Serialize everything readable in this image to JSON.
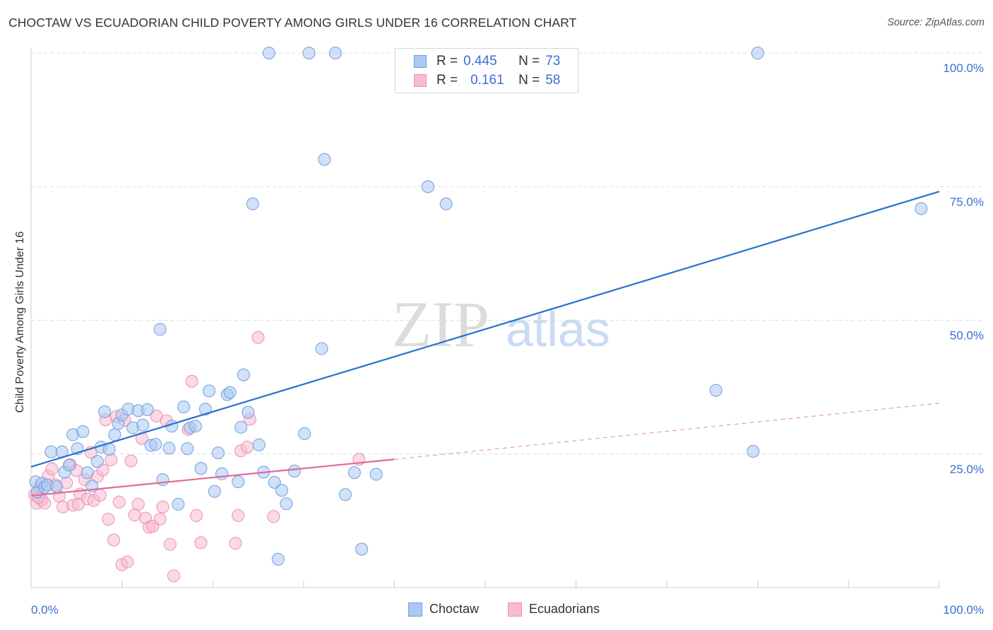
{
  "header": {
    "title": "CHOCTAW VS ECUADORIAN CHILD POVERTY AMONG GIRLS UNDER 16 CORRELATION CHART",
    "source": "Source: ZipAtlas.com"
  },
  "watermark": {
    "zip": "ZIP",
    "atlas": "atlas"
  },
  "legend": {
    "rows": [
      {
        "r_label": "R =",
        "r_value": "0.445",
        "n_label": "N =",
        "n_value": "73"
      },
      {
        "r_label": "R =",
        "r_value": "0.161",
        "n_label": "N =",
        "n_value": "58"
      }
    ]
  },
  "colors": {
    "choctaw_fill": "#aac8f2",
    "choctaw_stroke": "#6f9fe0",
    "choctaw_line": "#2b6fd0",
    "ecuadorian_fill": "#f7bcd0",
    "ecuadorian_stroke": "#ec8fb0",
    "ecuadorian_line": "#e06a98",
    "tick_text": "#3b6fd0",
    "grid": "#dddddd"
  },
  "chart_data": {
    "type": "scatter",
    "title": "CHOCTAW VS ECUADORIAN CHILD POVERTY AMONG GIRLS UNDER 16 CORRELATION CHART",
    "xlabel": "",
    "ylabel": "Child Poverty Among Girls Under 16",
    "xlim": [
      0,
      100
    ],
    "ylim": [
      0,
      102
    ],
    "x_tick_labels": [
      "0.0%",
      "100.0%"
    ],
    "y_ticks": [
      25,
      50,
      75,
      100
    ],
    "y_tick_labels": [
      "25.0%",
      "50.0%",
      "75.0%",
      "100.0%"
    ],
    "grid": true,
    "legend_position": "top-center",
    "series": [
      {
        "name": "Choctaw",
        "r": 0.445,
        "n": 73,
        "trend": {
          "x": [
            0,
            100
          ],
          "y": [
            22.6,
            74.1
          ],
          "style": "solid"
        },
        "points": [
          [
            0.5,
            19.8
          ],
          [
            0.7,
            17.9
          ],
          [
            1.2,
            19.5
          ],
          [
            1.5,
            18.8
          ],
          [
            1.8,
            19.2
          ],
          [
            2.2,
            25.4
          ],
          [
            2.8,
            18.9
          ],
          [
            3.4,
            25.4
          ],
          [
            3.7,
            21.6
          ],
          [
            4.2,
            22.9
          ],
          [
            4.6,
            28.6
          ],
          [
            5.1,
            26.0
          ],
          [
            5.7,
            29.2
          ],
          [
            6.2,
            21.5
          ],
          [
            6.7,
            19.0
          ],
          [
            7.3,
            23.6
          ],
          [
            7.7,
            26.3
          ],
          [
            8.1,
            32.9
          ],
          [
            8.6,
            25.9
          ],
          [
            9.2,
            28.6
          ],
          [
            9.6,
            30.7
          ],
          [
            10.0,
            32.3
          ],
          [
            10.7,
            33.4
          ],
          [
            11.2,
            29.9
          ],
          [
            11.8,
            33.1
          ],
          [
            12.3,
            30.4
          ],
          [
            12.8,
            33.3
          ],
          [
            13.2,
            26.6
          ],
          [
            13.7,
            26.8
          ],
          [
            14.2,
            48.3
          ],
          [
            14.5,
            20.2
          ],
          [
            15.2,
            26.1
          ],
          [
            15.5,
            30.2
          ],
          [
            16.2,
            15.6
          ],
          [
            16.8,
            33.8
          ],
          [
            17.2,
            26.0
          ],
          [
            17.5,
            29.9
          ],
          [
            18.1,
            30.2
          ],
          [
            18.7,
            22.3
          ],
          [
            19.2,
            33.4
          ],
          [
            19.6,
            36.8
          ],
          [
            20.2,
            18.0
          ],
          [
            20.6,
            25.2
          ],
          [
            21.0,
            21.3
          ],
          [
            21.6,
            36.1
          ],
          [
            21.9,
            36.5
          ],
          [
            22.8,
            19.8
          ],
          [
            23.1,
            30.0
          ],
          [
            23.4,
            39.8
          ],
          [
            23.9,
            32.8
          ],
          [
            24.4,
            71.8
          ],
          [
            25.1,
            26.7
          ],
          [
            25.6,
            21.6
          ],
          [
            26.2,
            100.0
          ],
          [
            26.8,
            19.7
          ],
          [
            27.2,
            5.3
          ],
          [
            27.6,
            18.2
          ],
          [
            28.1,
            15.7
          ],
          [
            29.0,
            21.8
          ],
          [
            30.1,
            28.8
          ],
          [
            30.6,
            100.0
          ],
          [
            32.0,
            44.7
          ],
          [
            32.3,
            80.1
          ],
          [
            33.5,
            100.0
          ],
          [
            34.6,
            17.4
          ],
          [
            35.6,
            21.5
          ],
          [
            36.4,
            7.2
          ],
          [
            38.0,
            21.2
          ],
          [
            43.7,
            75.0
          ],
          [
            45.7,
            71.8
          ],
          [
            75.4,
            36.9
          ],
          [
            79.5,
            25.5
          ],
          [
            80.0,
            100.0
          ],
          [
            98.0,
            70.9
          ]
        ]
      },
      {
        "name": "Ecuadorians",
        "r": 0.161,
        "n": 58,
        "trend": {
          "x": [
            0,
            40
          ],
          "y": [
            17.2,
            24.0
          ],
          "dash_to": [
            100,
            34.5
          ],
          "style": "solid-then-dashed"
        },
        "points": [
          [
            0.4,
            17.4
          ],
          [
            0.6,
            15.8
          ],
          [
            0.9,
            18.8
          ],
          [
            1.2,
            16.4
          ],
          [
            1.5,
            15.8
          ],
          [
            1.9,
            20.9
          ],
          [
            2.3,
            22.2
          ],
          [
            2.7,
            19.2
          ],
          [
            3.1,
            17.1
          ],
          [
            3.5,
            15.1
          ],
          [
            3.9,
            19.6
          ],
          [
            4.3,
            23.0
          ],
          [
            4.6,
            15.4
          ],
          [
            5.0,
            21.9
          ],
          [
            5.4,
            17.5
          ],
          [
            5.9,
            20.2
          ],
          [
            6.2,
            16.6
          ],
          [
            6.6,
            25.3
          ],
          [
            6.9,
            16.3
          ],
          [
            7.3,
            20.8
          ],
          [
            7.6,
            17.3
          ],
          [
            7.9,
            22.0
          ],
          [
            8.2,
            31.4
          ],
          [
            8.5,
            12.8
          ],
          [
            8.8,
            23.9
          ],
          [
            9.1,
            8.9
          ],
          [
            9.4,
            32.0
          ],
          [
            9.7,
            16.0
          ],
          [
            10.0,
            4.3
          ],
          [
            10.3,
            31.3
          ],
          [
            10.6,
            4.8
          ],
          [
            11.0,
            23.7
          ],
          [
            11.4,
            13.6
          ],
          [
            11.8,
            15.6
          ],
          [
            12.2,
            27.9
          ],
          [
            12.6,
            13.0
          ],
          [
            13.0,
            11.3
          ],
          [
            13.4,
            11.5
          ],
          [
            13.8,
            32.1
          ],
          [
            14.2,
            12.8
          ],
          [
            14.5,
            15.1
          ],
          [
            14.9,
            31.2
          ],
          [
            15.3,
            8.1
          ],
          [
            15.7,
            2.2
          ],
          [
            17.3,
            29.6
          ],
          [
            17.7,
            38.6
          ],
          [
            18.2,
            13.5
          ],
          [
            18.7,
            8.4
          ],
          [
            22.5,
            8.3
          ],
          [
            22.8,
            13.5
          ],
          [
            23.1,
            25.6
          ],
          [
            23.8,
            26.3
          ],
          [
            24.1,
            31.5
          ],
          [
            25.0,
            46.8
          ],
          [
            26.7,
            13.3
          ],
          [
            36.1,
            24.0
          ],
          [
            0.8,
            16.9
          ],
          [
            5.2,
            15.6
          ]
        ]
      }
    ]
  },
  "bottom_legend": {
    "items": [
      "Choctaw",
      "Ecuadorians"
    ]
  }
}
